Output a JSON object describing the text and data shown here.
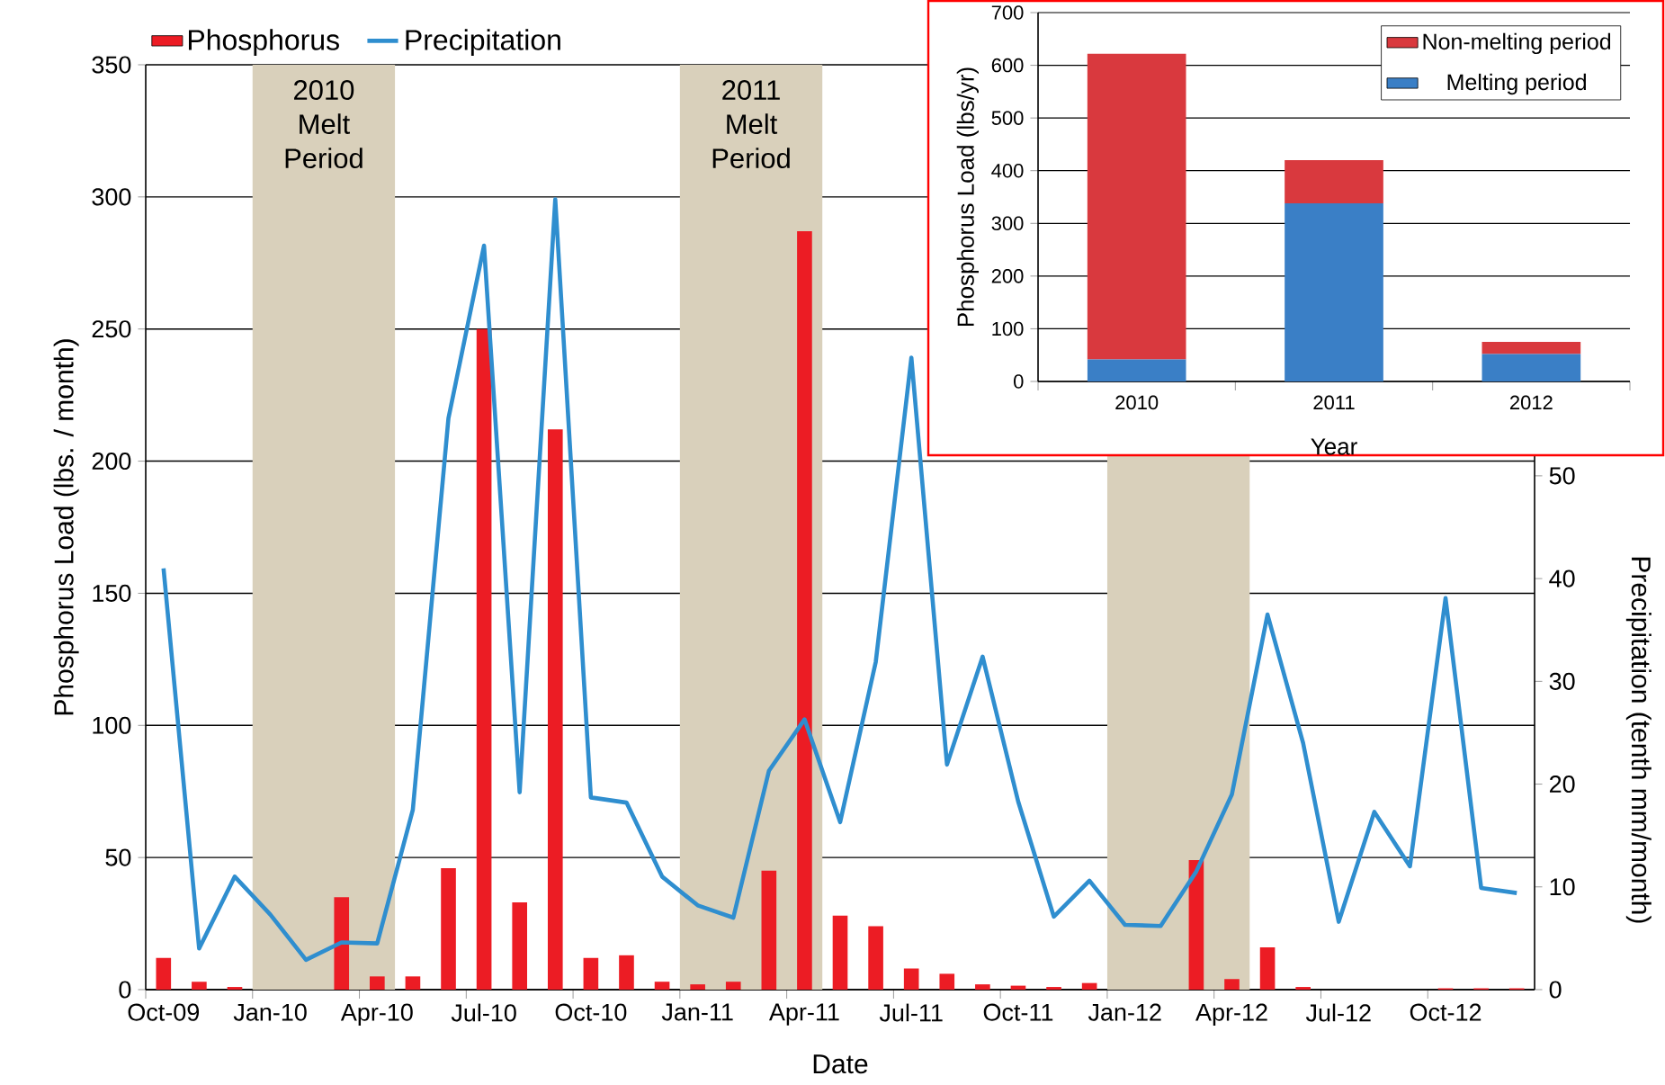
{
  "chart_data": [
    {
      "type": "bar",
      "xlabel": "Date",
      "ylabel": "Phosphorus Load (lbs. / month)",
      "y2label": "Precipitation (tenth mm/month)",
      "categories": [
        "Oct-09",
        null,
        null,
        "Jan-10",
        null,
        null,
        "Apr-10",
        null,
        null,
        "Jul-10",
        null,
        null,
        "Oct-10",
        null,
        null,
        "Jan-11",
        null,
        null,
        "Apr-11",
        null,
        null,
        "Jul-11",
        null,
        null,
        "Oct-11",
        null,
        null,
        "Jan-12",
        null,
        null,
        "Apr-12",
        null,
        null,
        "Jul-12",
        null,
        null,
        "Oct-12",
        null,
        null
      ],
      "series": [
        {
          "name": "Phosphorus",
          "type": "bar",
          "color": "#ec1c24",
          "values": [
            12,
            3,
            1,
            0,
            0,
            35,
            5,
            5,
            46,
            250,
            33,
            212,
            12,
            13,
            3,
            2,
            3,
            45,
            287,
            28,
            24,
            8,
            6,
            2,
            1.5,
            1,
            2.5,
            0,
            0,
            49,
            4,
            16,
            1,
            0,
            0,
            0,
            0.5,
            0.5,
            0.5
          ]
        },
        {
          "name": "Precipitation",
          "type": "line",
          "axis": "y2",
          "color": "#2f8ecf",
          "values": [
            41,
            4,
            11,
            7.3,
            2.9,
            4.6,
            4.5,
            17.5,
            55.6,
            72.4,
            19.2,
            76.9,
            18.7,
            18.2,
            11,
            8.2,
            7,
            21.3,
            26.3,
            16.3,
            31.9,
            61.5,
            21.9,
            32.4,
            18.3,
            7.1,
            10.6,
            6.3,
            6.2,
            11.5,
            19,
            36.5,
            24,
            6.6,
            17.3,
            12,
            38.1,
            9.9,
            9.4
          ]
        }
      ],
      "ylim": [
        0,
        350
      ],
      "yticks": [
        0,
        50,
        100,
        150,
        200,
        250,
        300,
        350
      ],
      "y2lim": [
        0,
        90
      ],
      "y2ticks": [
        0,
        10,
        20,
        30,
        40,
        50
      ],
      "bands": [
        {
          "axis": "x",
          "from": "Jan-10",
          "to": "Apr-10",
          "label": "2010 Melt Period",
          "color": "#d9d0bb"
        },
        {
          "axis": "x",
          "from": "Jan-11",
          "to": "Apr-11",
          "label": "2011 Melt Period",
          "color": "#d9d0bb"
        },
        {
          "axis": "x",
          "from": "Jan-12",
          "to": "Apr-12",
          "color": "#d9d0bb"
        }
      ],
      "grid": "y",
      "legend": "top left"
    },
    {
      "type": "bar",
      "stacked": true,
      "xlabel": "Year",
      "ylabel": "Phosphorus Load (lbs/yr)",
      "categories": [
        "2010",
        "2011",
        "2012"
      ],
      "series": [
        {
          "name": "Melting period",
          "color": "#3a7fc6",
          "values": [
            42,
            338,
            52
          ]
        },
        {
          "name": "Non-melting period",
          "color": "#d9393e",
          "values": [
            580,
            82,
            23
          ]
        }
      ],
      "ylim": [
        0,
        700
      ],
      "yticks": [
        0,
        100,
        200,
        300,
        400,
        500,
        600,
        700
      ],
      "grid": "y",
      "legend": "top right"
    }
  ]
}
